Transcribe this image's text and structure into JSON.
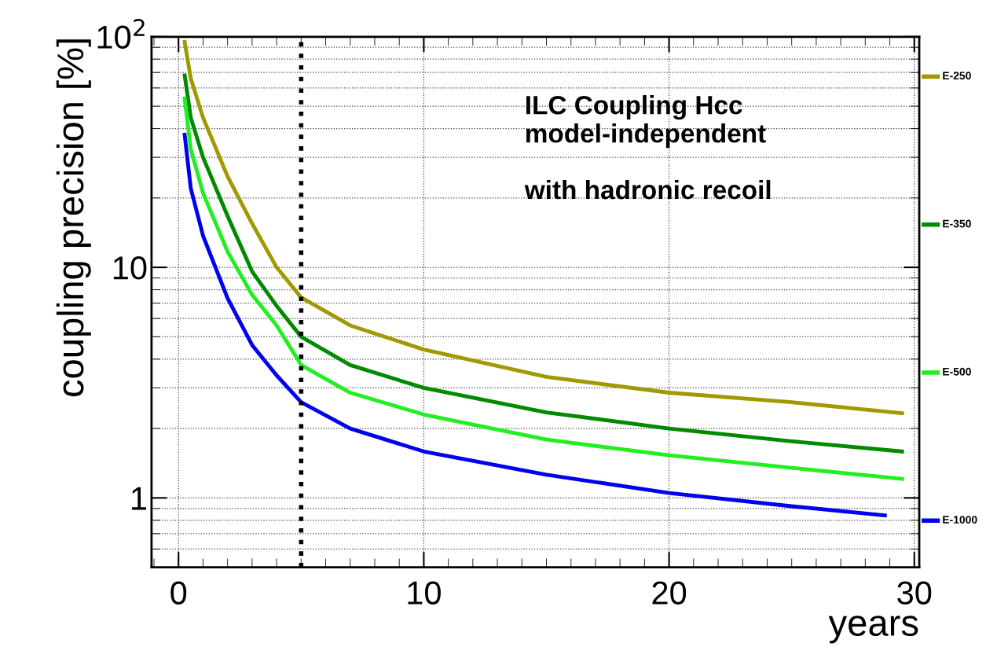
{
  "chart_data": {
    "type": "line",
    "xlabel": "years",
    "ylabel": "coupling precision [%]",
    "annotations": [
      "ILC Coupling Hcc\nmodel-independent\n\nwith hadronic recoil"
    ],
    "log": "y",
    "grid": true,
    "line_style": "solid",
    "legend": "right",
    "xlim": [
      -1.1,
      30.2
    ],
    "xticks": [
      0,
      10,
      20,
      30
    ],
    "ylim": [
      0.5,
      100
    ],
    "yticks": [
      1,
      10,
      {
        "value": 100,
        "label": "10$^{2}$"
      }
    ],
    "ref_lines": [
      {
        "axis": "x",
        "value": 5,
        "label": null,
        "color": "#000000",
        "line_style": "dotted"
      }
    ],
    "x": [
      0.25,
      0.5,
      1,
      2,
      3,
      4,
      5,
      7,
      10,
      15,
      20,
      25,
      29.5
    ],
    "series": [
      {
        "name": "E-250",
        "color": "#a09a00",
        "values": [
          95,
          66,
          44.6,
          24.8,
          15.5,
          10,
          7.4,
          5.6,
          4.4,
          3.35,
          2.86,
          2.6,
          2.33
        ]
      },
      {
        "name": "E-350",
        "color": "#008a00",
        "values": [
          68,
          44.6,
          30,
          16.7,
          9.6,
          6.8,
          5.0,
          3.77,
          3.0,
          2.35,
          2.0,
          1.76,
          1.59
        ]
      },
      {
        "name": "E-500",
        "color": "#22ee22",
        "values": [
          54,
          32.5,
          21,
          11.7,
          7.6,
          5.6,
          3.77,
          2.86,
          2.3,
          1.79,
          1.53,
          1.35,
          1.21
        ]
      },
      {
        "name": "E-1000",
        "color": "#0000ee",
        "x": [
          0.25,
          0.5,
          1,
          2,
          3,
          4,
          5,
          7,
          10,
          15,
          20,
          25,
          28.8
        ],
        "values": [
          37.6,
          22,
          13.7,
          7.35,
          4.6,
          3.4,
          2.6,
          2.0,
          1.59,
          1.26,
          1.05,
          0.92,
          0.84
        ]
      }
    ]
  }
}
